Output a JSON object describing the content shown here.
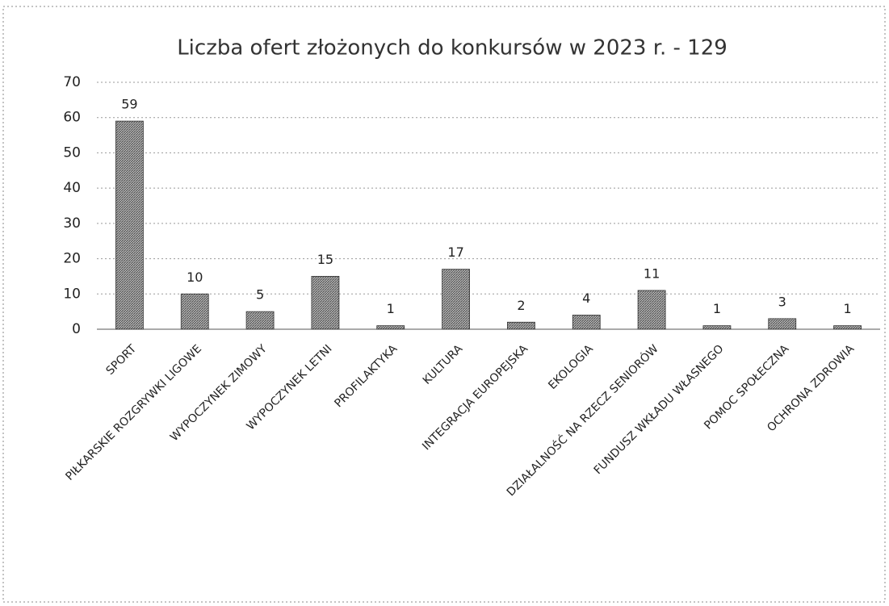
{
  "chart_data": {
    "type": "bar",
    "title": "Liczba ofert złożonych do konkursów w 2023 r. - 129",
    "categories": [
      "SPORT",
      "PIŁKARSKIE ROZGRYWKI LIGOWE",
      "WYPOCZYNEK ZIMOWY",
      "WYPOCZYNEK LETNI",
      "PROFILAKTYKA",
      "KULTURA",
      "INTEGRACJA EUROPEJSKA",
      "EKOLOGIA",
      "DZIAŁALNOŚĆ NA RZECZ SENIORÓW",
      "FUNDUSZ WKŁADU WŁASNEGO",
      "POMOC SPOŁECZNA",
      "OCHRONA ZDROWIA"
    ],
    "values": [
      59,
      10,
      5,
      15,
      1,
      17,
      2,
      4,
      11,
      1,
      3,
      1
    ],
    "color": "#555555",
    "ylim": [
      0,
      70
    ],
    "yticks": [
      0,
      10,
      20,
      30,
      40,
      50,
      60,
      70
    ],
    "grid": true
  }
}
